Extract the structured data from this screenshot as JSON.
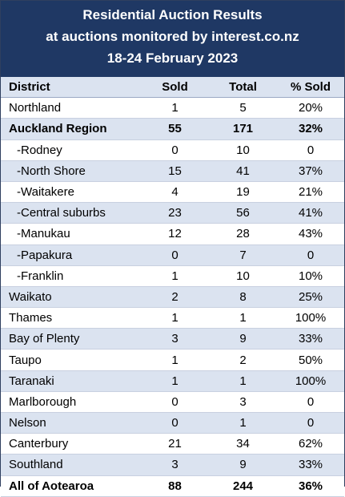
{
  "title_lines": [
    "Residential Auction Results",
    "at auctions monitored by interest.co.nz",
    "18-24 February 2023"
  ],
  "colors": {
    "header_bg": "#1f3864",
    "header_text": "#ffffff",
    "band": "#dbe3f0"
  },
  "chart_data": {
    "type": "table",
    "title": "Residential Auction Results at auctions monitored by interest.co.nz 18-24 February 2023",
    "columns": [
      "District",
      "Sold",
      "Total",
      "% Sold"
    ],
    "rows": [
      {
        "district": "Northland",
        "sold": "1",
        "total": "5",
        "pct": "20%",
        "sub": false,
        "bold": false
      },
      {
        "district": "Auckland Region",
        "sold": "55",
        "total": "171",
        "pct": "32%",
        "sub": false,
        "bold": true
      },
      {
        "district": "-Rodney",
        "sold": "0",
        "total": "10",
        "pct": "0",
        "sub": true,
        "bold": false
      },
      {
        "district": "-North Shore",
        "sold": "15",
        "total": "41",
        "pct": "37%",
        "sub": true,
        "bold": false
      },
      {
        "district": "-Waitakere",
        "sold": "4",
        "total": "19",
        "pct": "21%",
        "sub": true,
        "bold": false
      },
      {
        "district": "-Central suburbs",
        "sold": "23",
        "total": "56",
        "pct": "41%",
        "sub": true,
        "bold": false
      },
      {
        "district": "-Manukau",
        "sold": "12",
        "total": "28",
        "pct": "43%",
        "sub": true,
        "bold": false
      },
      {
        "district": "-Papakura",
        "sold": "0",
        "total": "7",
        "pct": "0",
        "sub": true,
        "bold": false
      },
      {
        "district": "-Franklin",
        "sold": "1",
        "total": "10",
        "pct": "10%",
        "sub": true,
        "bold": false
      },
      {
        "district": "Waikato",
        "sold": "2",
        "total": "8",
        "pct": "25%",
        "sub": false,
        "bold": false
      },
      {
        "district": "Thames",
        "sold": "1",
        "total": "1",
        "pct": "100%",
        "sub": false,
        "bold": false
      },
      {
        "district": "Bay of Plenty",
        "sold": "3",
        "total": "9",
        "pct": "33%",
        "sub": false,
        "bold": false
      },
      {
        "district": "Taupo",
        "sold": "1",
        "total": "2",
        "pct": "50%",
        "sub": false,
        "bold": false
      },
      {
        "district": "Taranaki",
        "sold": "1",
        "total": "1",
        "pct": "100%",
        "sub": false,
        "bold": false
      },
      {
        "district": "Marlborough",
        "sold": "0",
        "total": "3",
        "pct": "0",
        "sub": false,
        "bold": false
      },
      {
        "district": "Nelson",
        "sold": "0",
        "total": "1",
        "pct": "0",
        "sub": false,
        "bold": false
      },
      {
        "district": "Canterbury",
        "sold": "21",
        "total": "34",
        "pct": "62%",
        "sub": false,
        "bold": false
      },
      {
        "district": "Southland",
        "sold": "3",
        "total": "9",
        "pct": "33%",
        "sub": false,
        "bold": false
      },
      {
        "district": "All of Aotearoa",
        "sold": "88",
        "total": "244",
        "pct": "36%",
        "sub": false,
        "bold": true
      }
    ]
  }
}
